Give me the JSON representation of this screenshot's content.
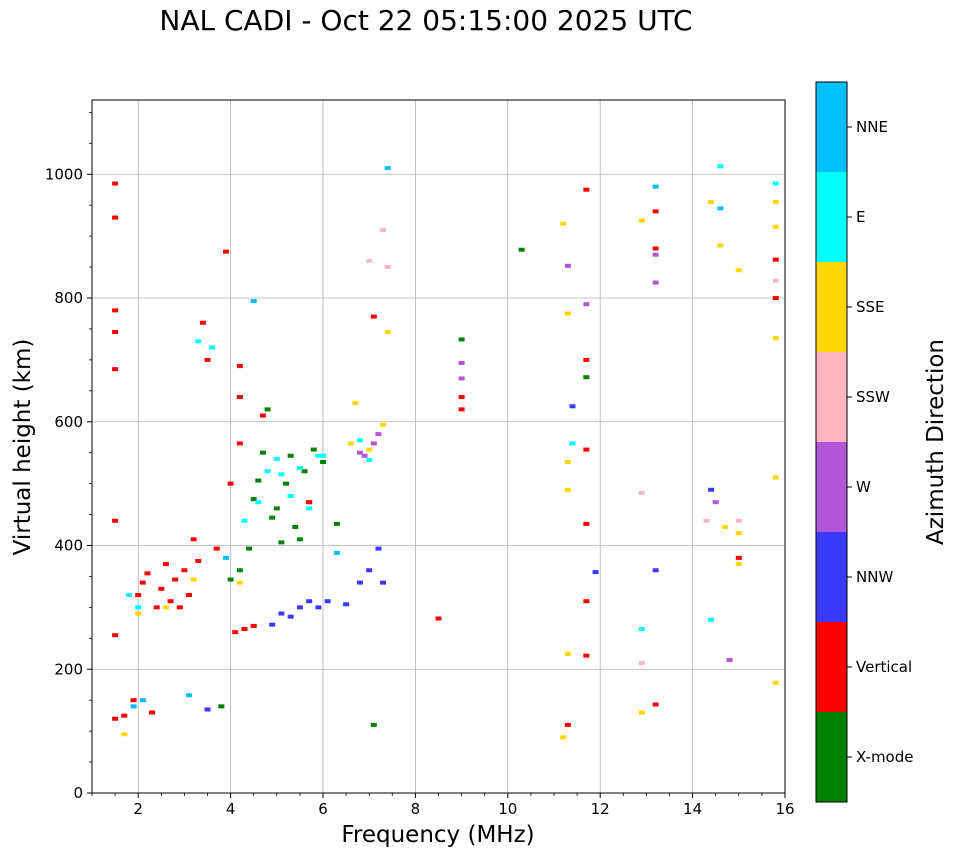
{
  "chart_data": {
    "type": "scatter",
    "title": "NAL CADI - Oct 22 05:15:00 2025 UTC",
    "xlabel": "Frequency (MHz)",
    "ylabel": "Virtual height (km)",
    "xlim": [
      1,
      16
    ],
    "ylim": [
      0,
      1120
    ],
    "xticks": [
      2,
      4,
      6,
      8,
      10,
      12,
      14,
      16
    ],
    "yticks": [
      0,
      200,
      400,
      600,
      800,
      1000
    ],
    "grid": true,
    "colorbar": {
      "label": "Azimuth Direction",
      "categories": [
        {
          "name": "X-mode",
          "color": "#008000"
        },
        {
          "name": "Vertical",
          "color": "#ff0000"
        },
        {
          "name": "NNW",
          "color": "#3a3aff"
        },
        {
          "name": "W",
          "color": "#b156d6"
        },
        {
          "name": "SSW",
          "color": "#ffb6c1"
        },
        {
          "name": "SSE",
          "color": "#ffd700"
        },
        {
          "name": "E",
          "color": "#00ffff"
        },
        {
          "name": "NNE",
          "color": "#00bfff"
        }
      ]
    },
    "series": [
      {
        "name": "X-mode",
        "points": [
          [
            3.8,
            140
          ],
          [
            4.0,
            345
          ],
          [
            4.2,
            360
          ],
          [
            4.4,
            395
          ],
          [
            4.5,
            475
          ],
          [
            4.6,
            505
          ],
          [
            4.7,
            550
          ],
          [
            4.8,
            620
          ],
          [
            4.9,
            445
          ],
          [
            5.0,
            460
          ],
          [
            5.1,
            405
          ],
          [
            5.2,
            500
          ],
          [
            5.3,
            545
          ],
          [
            5.4,
            430
          ],
          [
            5.5,
            410
          ],
          [
            5.6,
            520
          ],
          [
            5.7,
            470
          ],
          [
            5.8,
            555
          ],
          [
            6.0,
            535
          ],
          [
            6.3,
            435
          ],
          [
            7.1,
            110
          ],
          [
            9.0,
            733
          ],
          [
            10.3,
            878
          ],
          [
            11.7,
            672
          ]
        ]
      },
      {
        "name": "Vertical",
        "points": [
          [
            1.5,
            985
          ],
          [
            1.5,
            930
          ],
          [
            1.5,
            780
          ],
          [
            1.5,
            745
          ],
          [
            1.5,
            685
          ],
          [
            1.5,
            440
          ],
          [
            1.5,
            255
          ],
          [
            1.5,
            120
          ],
          [
            1.7,
            125
          ],
          [
            1.9,
            150
          ],
          [
            2.0,
            320
          ],
          [
            2.1,
            340
          ],
          [
            2.2,
            355
          ],
          [
            2.3,
            130
          ],
          [
            2.4,
            300
          ],
          [
            2.5,
            330
          ],
          [
            2.6,
            370
          ],
          [
            2.7,
            310
          ],
          [
            2.8,
            345
          ],
          [
            2.9,
            300
          ],
          [
            3.0,
            360
          ],
          [
            3.1,
            320
          ],
          [
            3.2,
            410
          ],
          [
            3.3,
            375
          ],
          [
            3.4,
            760
          ],
          [
            3.5,
            700
          ],
          [
            3.7,
            395
          ],
          [
            3.9,
            875
          ],
          [
            4.0,
            500
          ],
          [
            4.1,
            260
          ],
          [
            4.2,
            690
          ],
          [
            4.2,
            640
          ],
          [
            4.2,
            565
          ],
          [
            4.3,
            265
          ],
          [
            4.5,
            270
          ],
          [
            4.7,
            610
          ],
          [
            5.7,
            470
          ],
          [
            7.1,
            770
          ],
          [
            8.5,
            282
          ],
          [
            9.0,
            640
          ],
          [
            9.0,
            620
          ],
          [
            11.3,
            110
          ],
          [
            11.7,
            700
          ],
          [
            11.7,
            555
          ],
          [
            11.7,
            435
          ],
          [
            11.7,
            310
          ],
          [
            11.7,
            222
          ],
          [
            11.7,
            975
          ],
          [
            13.2,
            940
          ],
          [
            13.2,
            880
          ],
          [
            13.2,
            143
          ],
          [
            15.0,
            380
          ],
          [
            15.8,
            862
          ],
          [
            15.8,
            800
          ]
        ]
      },
      {
        "name": "NNW",
        "points": [
          [
            3.5,
            135
          ],
          [
            4.9,
            272
          ],
          [
            5.1,
            290
          ],
          [
            5.3,
            285
          ],
          [
            5.5,
            300
          ],
          [
            5.7,
            310
          ],
          [
            5.9,
            300
          ],
          [
            6.1,
            310
          ],
          [
            6.5,
            305
          ],
          [
            6.8,
            340
          ],
          [
            7.0,
            360
          ],
          [
            7.2,
            395
          ],
          [
            7.3,
            340
          ],
          [
            11.4,
            625
          ],
          [
            11.9,
            357
          ],
          [
            13.2,
            360
          ],
          [
            14.4,
            490
          ]
        ]
      },
      {
        "name": "W",
        "points": [
          [
            6.8,
            550
          ],
          [
            6.9,
            545
          ],
          [
            7.1,
            565
          ],
          [
            7.2,
            580
          ],
          [
            9.0,
            695
          ],
          [
            9.0,
            670
          ],
          [
            11.3,
            852
          ],
          [
            11.7,
            790
          ],
          [
            13.2,
            870
          ],
          [
            13.2,
            825
          ],
          [
            14.5,
            470
          ],
          [
            14.8,
            215
          ]
        ]
      },
      {
        "name": "SSW",
        "points": [
          [
            7.0,
            860
          ],
          [
            7.3,
            910
          ],
          [
            7.4,
            850
          ],
          [
            12.9,
            485
          ],
          [
            12.9,
            210
          ],
          [
            14.3,
            440
          ],
          [
            15.0,
            440
          ],
          [
            15.8,
            828
          ]
        ]
      },
      {
        "name": "SSE",
        "points": [
          [
            1.7,
            95
          ],
          [
            2.0,
            290
          ],
          [
            2.6,
            300
          ],
          [
            3.2,
            345
          ],
          [
            4.2,
            340
          ],
          [
            6.6,
            565
          ],
          [
            6.7,
            630
          ],
          [
            7.0,
            555
          ],
          [
            7.3,
            595
          ],
          [
            7.4,
            745
          ],
          [
            11.2,
            920
          ],
          [
            11.3,
            775
          ],
          [
            11.3,
            490
          ],
          [
            11.3,
            535
          ],
          [
            11.2,
            90
          ],
          [
            11.3,
            225
          ],
          [
            12.9,
            130
          ],
          [
            12.9,
            925
          ],
          [
            14.4,
            955
          ],
          [
            14.6,
            885
          ],
          [
            14.7,
            430
          ],
          [
            15.0,
            420
          ],
          [
            15.0,
            370
          ],
          [
            15.0,
            845
          ],
          [
            15.8,
            955
          ],
          [
            15.8,
            915
          ],
          [
            15.8,
            735
          ],
          [
            15.8,
            510
          ],
          [
            15.8,
            178
          ]
        ]
      },
      {
        "name": "E",
        "points": [
          [
            1.8,
            320
          ],
          [
            2.0,
            300
          ],
          [
            3.3,
            730
          ],
          [
            3.6,
            720
          ],
          [
            4.3,
            440
          ],
          [
            4.6,
            470
          ],
          [
            4.8,
            520
          ],
          [
            5.0,
            540
          ],
          [
            5.1,
            515
          ],
          [
            5.3,
            480
          ],
          [
            5.5,
            525
          ],
          [
            5.7,
            460
          ],
          [
            5.9,
            545
          ],
          [
            6.0,
            545
          ],
          [
            6.8,
            570
          ],
          [
            7.0,
            538
          ],
          [
            11.4,
            565
          ],
          [
            12.9,
            265
          ],
          [
            14.4,
            280
          ],
          [
            14.6,
            1013
          ],
          [
            15.8,
            985
          ]
        ]
      },
      {
        "name": "NNE",
        "points": [
          [
            1.9,
            140
          ],
          [
            2.1,
            150
          ],
          [
            3.1,
            158
          ],
          [
            3.9,
            380
          ],
          [
            4.5,
            795
          ],
          [
            6.3,
            388
          ],
          [
            7.4,
            1010
          ],
          [
            13.2,
            980
          ],
          [
            14.6,
            945
          ]
        ]
      }
    ]
  }
}
